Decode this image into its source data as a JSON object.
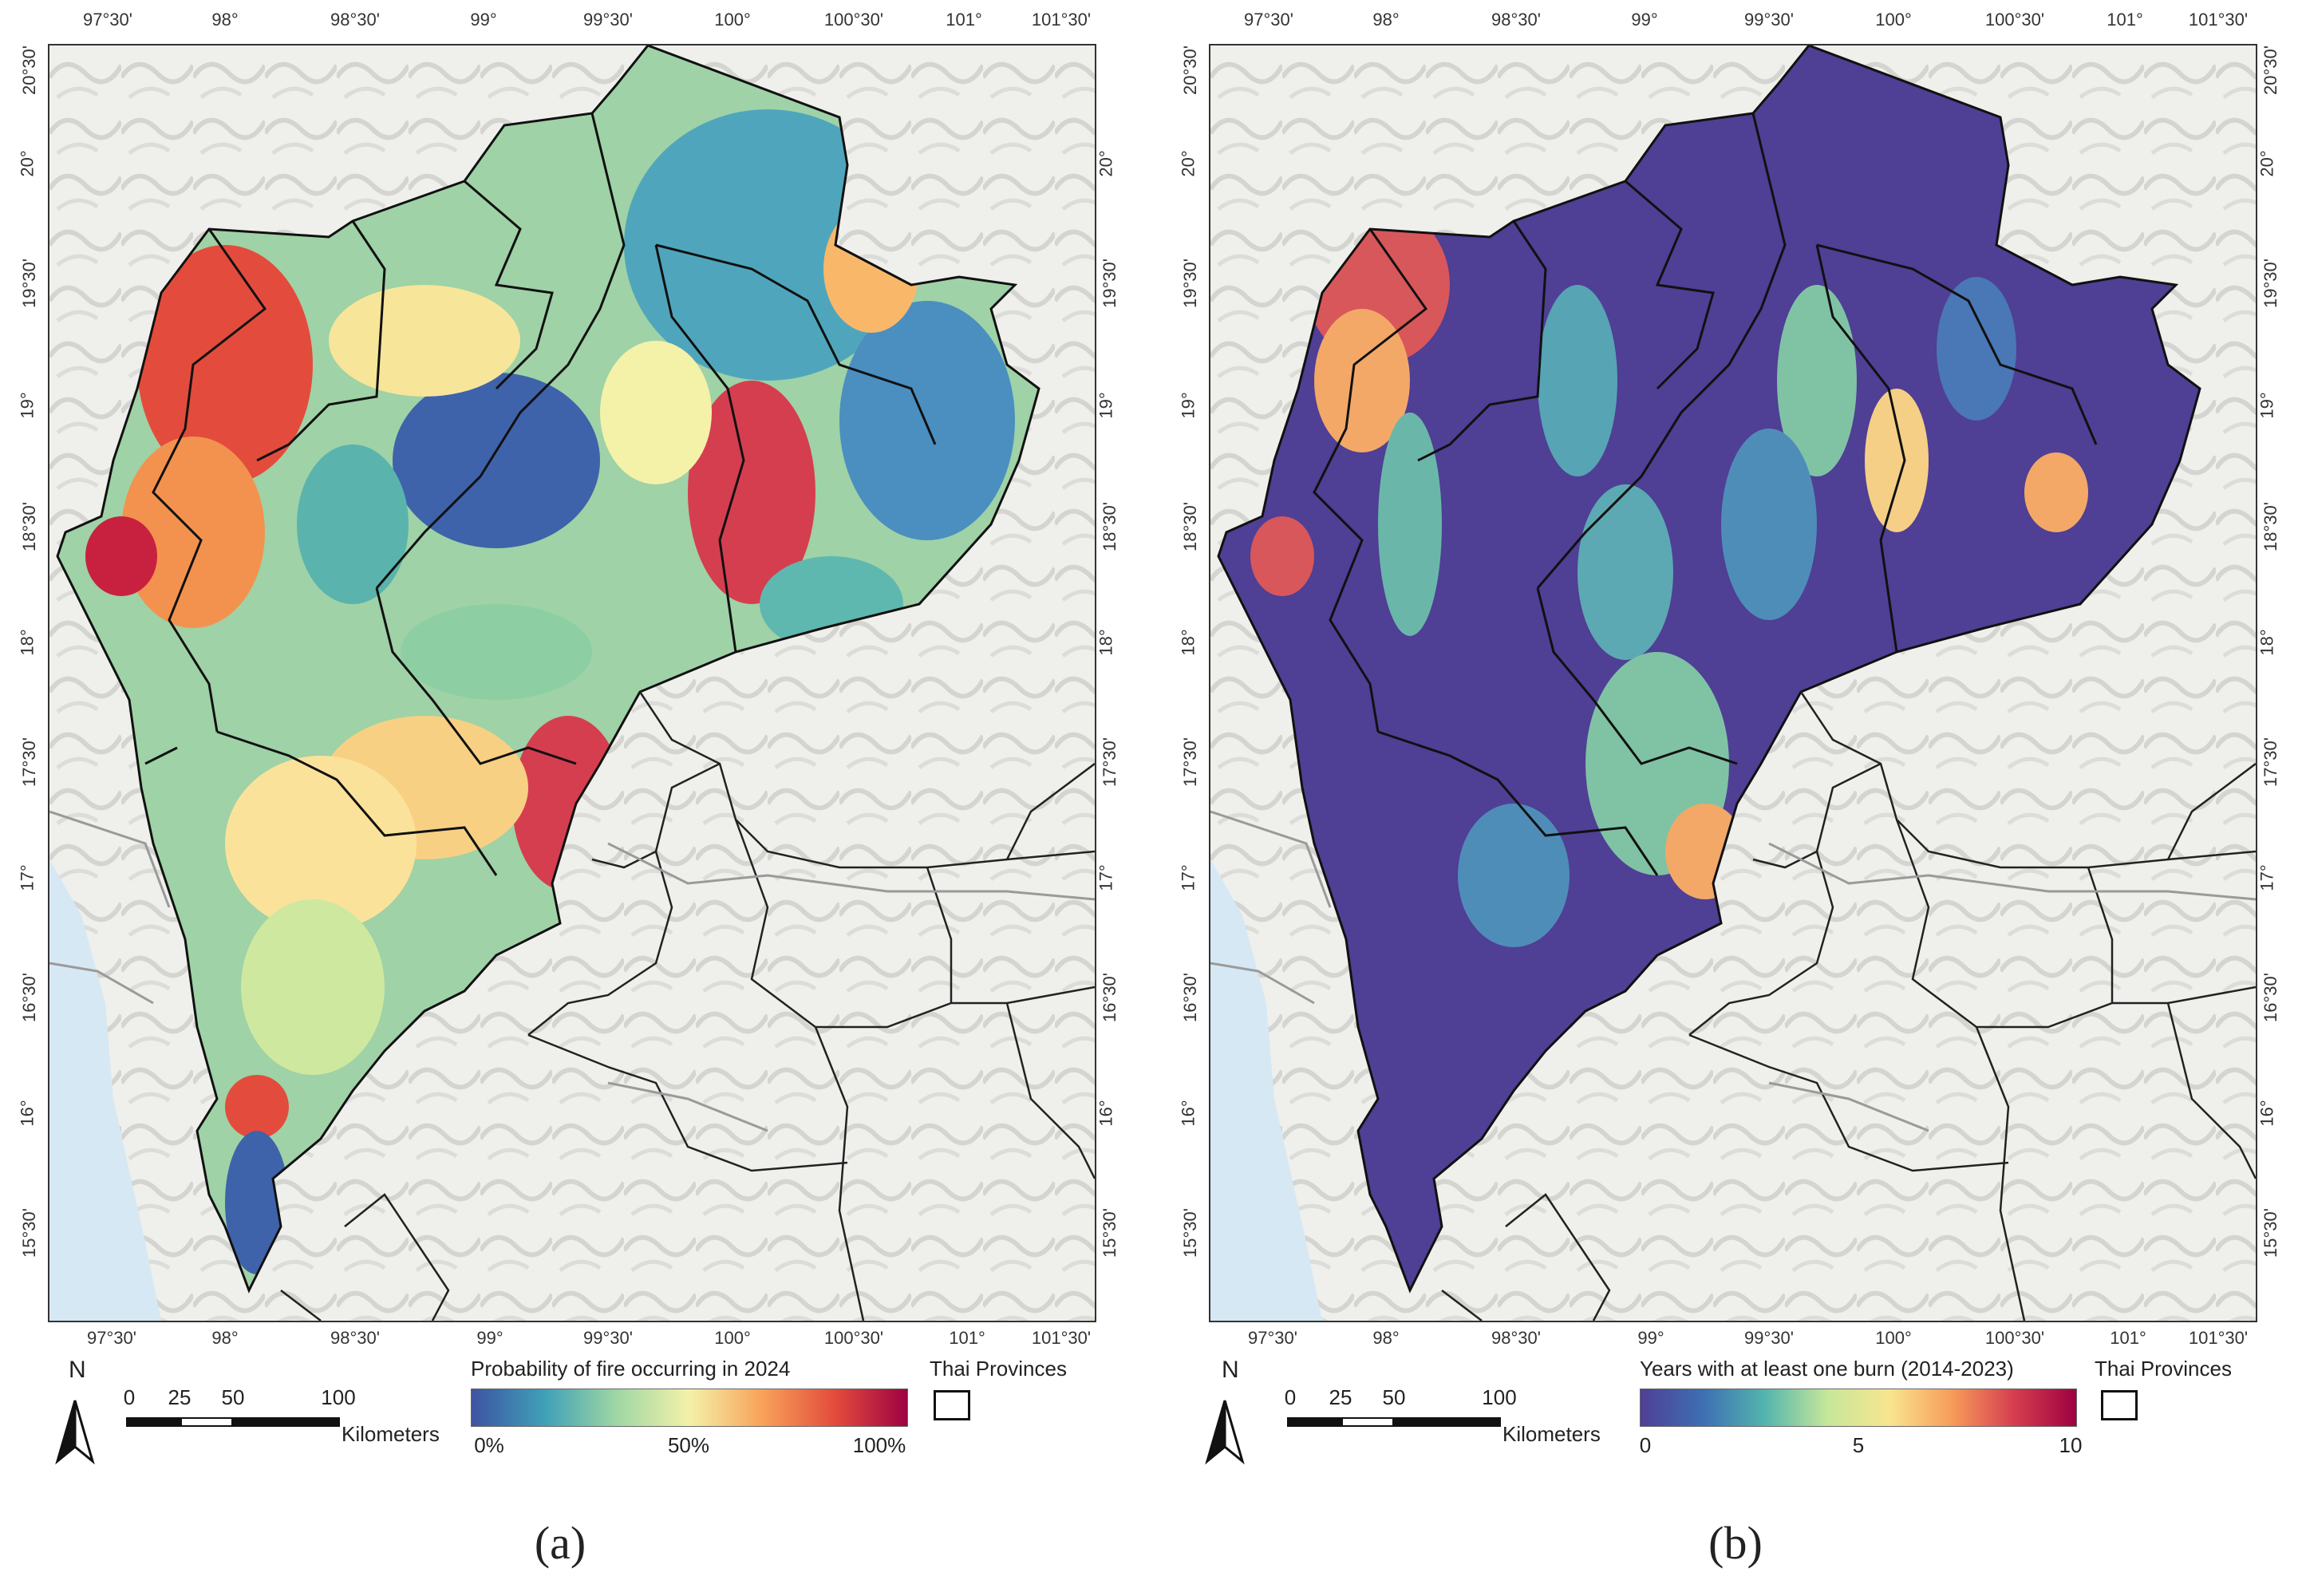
{
  "maps": [
    {
      "id": "a",
      "caption": "(a)",
      "legend": {
        "title": "Probability of fire occurring in 2024",
        "labels": [
          "0%",
          "50%",
          "100%"
        ],
        "colors": [
          "#3e53a3",
          "#3fa0b7",
          "#9fd7a4",
          "#f4f1a9",
          "#f8a25a",
          "#e34c3c",
          "#9e0142"
        ]
      },
      "scheme": "fire-probability"
    },
    {
      "id": "b",
      "caption": "(b)",
      "legend": {
        "title": "Years with at least one burn (2014-2023)",
        "labels": [
          "0",
          "5",
          "10"
        ],
        "colors": [
          "#4f3f95",
          "#3e6fb3",
          "#53b5ad",
          "#c6e79a",
          "#f8e58f",
          "#f79c5a",
          "#d53e4f",
          "#9e0142"
        ]
      },
      "scheme": "burn-years"
    }
  ],
  "common": {
    "lon_ticks": [
      "97°30'",
      "98°",
      "98°30'",
      "99°",
      "99°30'",
      "100°",
      "100°30'",
      "101°",
      "101°30'"
    ],
    "lat_ticks": [
      "20°30'",
      "20°",
      "19°30'",
      "19°",
      "18°30'",
      "18°",
      "17°30'",
      "17°",
      "16°30'",
      "16°",
      "15°30'"
    ],
    "north_label": "N",
    "scale_labels": [
      "0",
      "25",
      "50",
      "100"
    ],
    "scale_unit": "Kilometers",
    "provinces_legend": "Thai Provinces",
    "icons": [
      "north-arrow-icon",
      "province-outline-swatch"
    ]
  }
}
